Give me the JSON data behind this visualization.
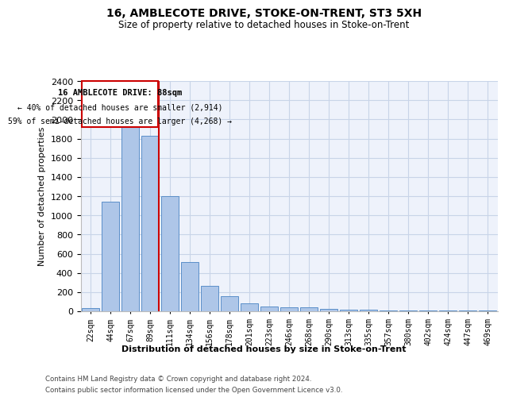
{
  "title": "16, AMBLECOTE DRIVE, STOKE-ON-TRENT, ST3 5XH",
  "subtitle": "Size of property relative to detached houses in Stoke-on-Trent",
  "xlabel": "Distribution of detached houses by size in Stoke-on-Trent",
  "ylabel": "Number of detached properties",
  "categories": [
    "22sqm",
    "44sqm",
    "67sqm",
    "89sqm",
    "111sqm",
    "134sqm",
    "156sqm",
    "178sqm",
    "201sqm",
    "223sqm",
    "246sqm",
    "268sqm",
    "290sqm",
    "313sqm",
    "335sqm",
    "357sqm",
    "380sqm",
    "402sqm",
    "424sqm",
    "447sqm",
    "469sqm"
  ],
  "values": [
    30,
    1140,
    1940,
    1830,
    1200,
    510,
    265,
    155,
    80,
    50,
    45,
    40,
    25,
    20,
    15,
    5,
    5,
    5,
    5,
    5,
    5
  ],
  "bar_color": "#aec6e8",
  "bar_edge_color": "#5b8fc9",
  "annotation_title": "16 AMBLECOTE DRIVE: 88sqm",
  "annotation_line1": "← 40% of detached houses are smaller (2,914)",
  "annotation_line2": "59% of semi-detached houses are larger (4,268) →",
  "annotation_color": "#cc0000",
  "vline_bar_index": 3,
  "ylim": [
    0,
    2400
  ],
  "yticks": [
    0,
    200,
    400,
    600,
    800,
    1000,
    1200,
    1400,
    1600,
    1800,
    2000,
    2200,
    2400
  ],
  "footer_line1": "Contains HM Land Registry data © Crown copyright and database right 2024.",
  "footer_line2": "Contains public sector information licensed under the Open Government Licence v3.0.",
  "background_color": "#eef2fb",
  "grid_color": "#c8d4e8"
}
